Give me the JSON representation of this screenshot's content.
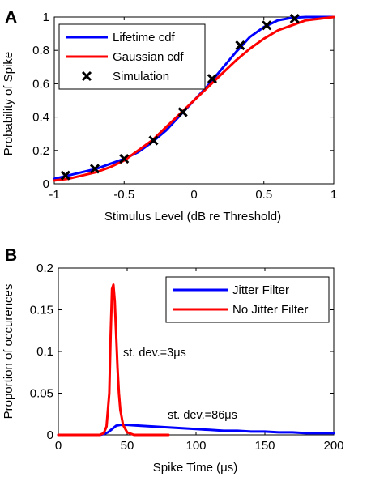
{
  "chart_data": [
    {
      "panel_letter": "A",
      "type": "line",
      "xlabel": "Stimulus Level (dB re Threshold)",
      "ylabel": "Probability of Spike",
      "xlim": [
        -1,
        1
      ],
      "ylim": [
        0,
        1
      ],
      "xticks": [
        "-1",
        "-0.5",
        "0",
        "0.5",
        "1"
      ],
      "yticks": [
        "0",
        "0.2",
        "0.4",
        "0.6",
        "0.8",
        "1"
      ],
      "grid": false,
      "legend_placement": "top-left",
      "series": [
        {
          "name": "Lifetime cdf",
          "type": "line",
          "color": "#0000ff",
          "x": [
            -1.0,
            -0.9,
            -0.8,
            -0.7,
            -0.6,
            -0.5,
            -0.4,
            -0.3,
            -0.2,
            -0.1,
            0.0,
            0.1,
            0.2,
            0.3,
            0.4,
            0.5,
            0.6,
            0.7,
            0.8,
            0.9,
            1.0
          ],
          "y": [
            0.03,
            0.05,
            0.07,
            0.09,
            0.12,
            0.15,
            0.19,
            0.25,
            0.32,
            0.41,
            0.5,
            0.59,
            0.69,
            0.79,
            0.88,
            0.94,
            0.98,
            0.995,
            1.0,
            1.0,
            1.0
          ]
        },
        {
          "name": "Gaussian cdf",
          "type": "line",
          "color": "#ff0000",
          "x": [
            -1.0,
            -0.9,
            -0.8,
            -0.7,
            -0.6,
            -0.5,
            -0.4,
            -0.3,
            -0.2,
            -0.1,
            0.0,
            0.1,
            0.2,
            0.3,
            0.4,
            0.5,
            0.6,
            0.7,
            0.8,
            0.9,
            1.0
          ],
          "y": [
            0.02,
            0.03,
            0.05,
            0.07,
            0.1,
            0.14,
            0.2,
            0.26,
            0.34,
            0.42,
            0.5,
            0.58,
            0.66,
            0.74,
            0.81,
            0.87,
            0.92,
            0.95,
            0.98,
            0.99,
            1.0
          ]
        },
        {
          "name": "Simulation",
          "type": "scatter",
          "color": "#000000",
          "marker": "x",
          "x": [
            -0.92,
            -0.71,
            -0.5,
            -0.29,
            -0.08,
            0.13,
            0.33,
            0.52,
            0.72
          ],
          "y": [
            0.05,
            0.09,
            0.15,
            0.26,
            0.43,
            0.63,
            0.83,
            0.95,
            0.99
          ]
        }
      ]
    },
    {
      "panel_letter": "B",
      "type": "line",
      "xlabel": "Spike Time (μs)",
      "ylabel": "Proportion of occurences",
      "xlim": [
        0,
        200
      ],
      "ylim": [
        0,
        0.2
      ],
      "xticks": [
        "0",
        "50",
        "100",
        "150",
        "200"
      ],
      "yticks": [
        "0",
        "0.05",
        "0.1",
        "0.15",
        "0.2"
      ],
      "grid": false,
      "legend_placement": "top-right",
      "annotations": [
        {
          "text": "st. dev.=3μs",
          "x": 47,
          "y": 0.1
        },
        {
          "text": "st. dev.=86μs",
          "x": 80,
          "y": 0.012
        }
      ],
      "series": [
        {
          "name": "Jitter Filter",
          "color": "#0000ff",
          "x": [
            0,
            30,
            33,
            36,
            39,
            42,
            45,
            50,
            60,
            70,
            80,
            90,
            100,
            110,
            120,
            130,
            140,
            150,
            160,
            170,
            180,
            190,
            200
          ],
          "y": [
            0,
            0,
            0.001,
            0.003,
            0.007,
            0.011,
            0.012,
            0.012,
            0.011,
            0.01,
            0.009,
            0.008,
            0.007,
            0.006,
            0.005,
            0.005,
            0.004,
            0.004,
            0.003,
            0.003,
            0.002,
            0.002,
            0.002
          ]
        },
        {
          "name": "No Jitter Filter",
          "color": "#ff0000",
          "x": [
            0,
            30,
            33,
            35,
            37,
            38,
            39,
            40,
            41,
            42,
            43,
            44,
            45,
            47,
            50,
            55,
            80
          ],
          "y": [
            0,
            0,
            0.002,
            0.01,
            0.05,
            0.12,
            0.175,
            0.18,
            0.16,
            0.12,
            0.08,
            0.05,
            0.03,
            0.012,
            0.003,
            0,
            0
          ]
        }
      ]
    }
  ]
}
